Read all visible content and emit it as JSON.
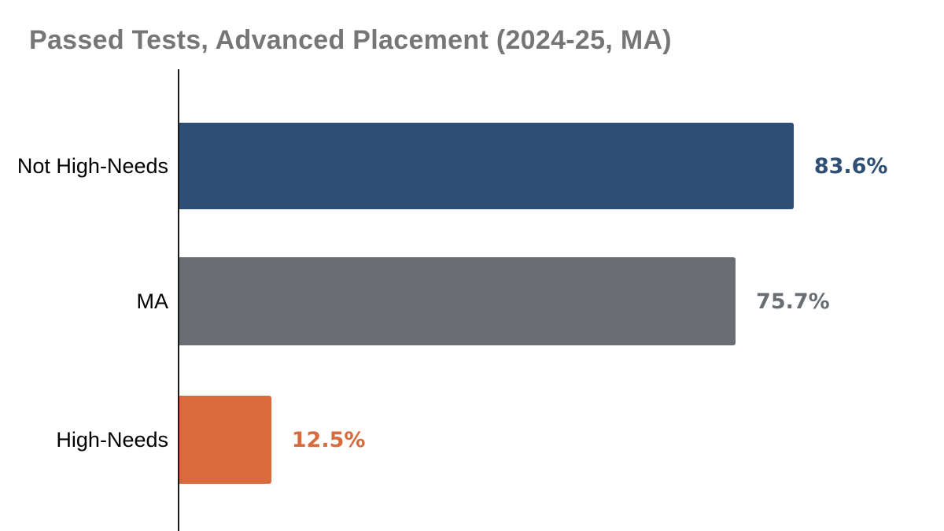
{
  "title": {
    "text": "Passed Tests, Advanced Placement (2024-25, MA)",
    "color": "#767676"
  },
  "chart_data": {
    "type": "bar",
    "orientation": "horizontal",
    "title": "Passed Tests, Advanced Placement (2024-25, MA)",
    "categories": [
      "Not High-Needs",
      "MA",
      "High-Needs"
    ],
    "values": [
      83.6,
      75.7,
      12.5
    ],
    "value_labels": [
      "83.6%",
      "75.7%",
      "12.5%"
    ],
    "bar_colors": [
      "#2E4E74",
      "#6A6E74",
      "#D96A3C"
    ],
    "category_label_color": "#000000",
    "axis_line_color": "#1A1A1A",
    "xlabel": "",
    "ylabel": "",
    "xlim": [
      0,
      100
    ],
    "grid": false,
    "legend": false
  }
}
